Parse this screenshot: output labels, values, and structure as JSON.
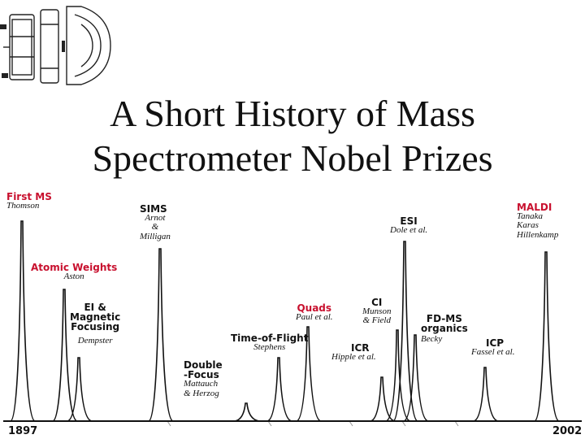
{
  "slide": {
    "title_line1": "A Short History of Mass",
    "title_line2": "Spectrometer Nobel Prizes"
  },
  "timeline": {
    "start_year": "1897",
    "end_year": "2002"
  },
  "peaks": [
    {
      "heading": "First MS",
      "heading_color": "#c8102e",
      "names": [
        "Thomson"
      ]
    },
    {
      "heading": "Atomic Weights",
      "heading_color": "#c8102e",
      "names": [
        "Aston"
      ]
    },
    {
      "heading_lines": [
        "EI &",
        "Magnetic",
        "Focusing"
      ],
      "heading_color": "#111111",
      "names": [
        "Dempster"
      ]
    },
    {
      "heading": "SIMS",
      "heading_color": "#111111",
      "names": [
        "Arnot",
        "&",
        "Milligan"
      ]
    },
    {
      "heading_lines": [
        "Double",
        "-Focus"
      ],
      "heading_color": "#111111",
      "names": [
        "Mattauch",
        "& Herzog"
      ]
    },
    {
      "heading": "Time-of-Flight",
      "heading_color": "#111111",
      "names": [
        "Stephens"
      ]
    },
    {
      "heading": "Quads",
      "heading_color": "#c8102e",
      "names": [
        "Paul et al."
      ]
    },
    {
      "heading": "ICR",
      "heading_color": "#111111",
      "names": [
        "Hipple et al."
      ]
    },
    {
      "heading": "CI",
      "heading_color": "#111111",
      "names": [
        "Munson",
        "& Field"
      ]
    },
    {
      "heading": "ESI",
      "heading_color": "#111111",
      "names": [
        "Dole et al."
      ]
    },
    {
      "heading_lines": [
        "FD-MS",
        "organics"
      ],
      "heading_color": "#111111",
      "names": [
        "Becky"
      ]
    },
    {
      "heading": "ICP",
      "heading_color": "#111111",
      "names": [
        "Fassel et al."
      ]
    },
    {
      "heading": "MALDI",
      "heading_color": "#c8102e",
      "names": [
        "Tanaka",
        "Karas",
        "Hillenkamp"
      ]
    }
  ],
  "icons": {
    "logo": "ion-source-lens-icon"
  }
}
